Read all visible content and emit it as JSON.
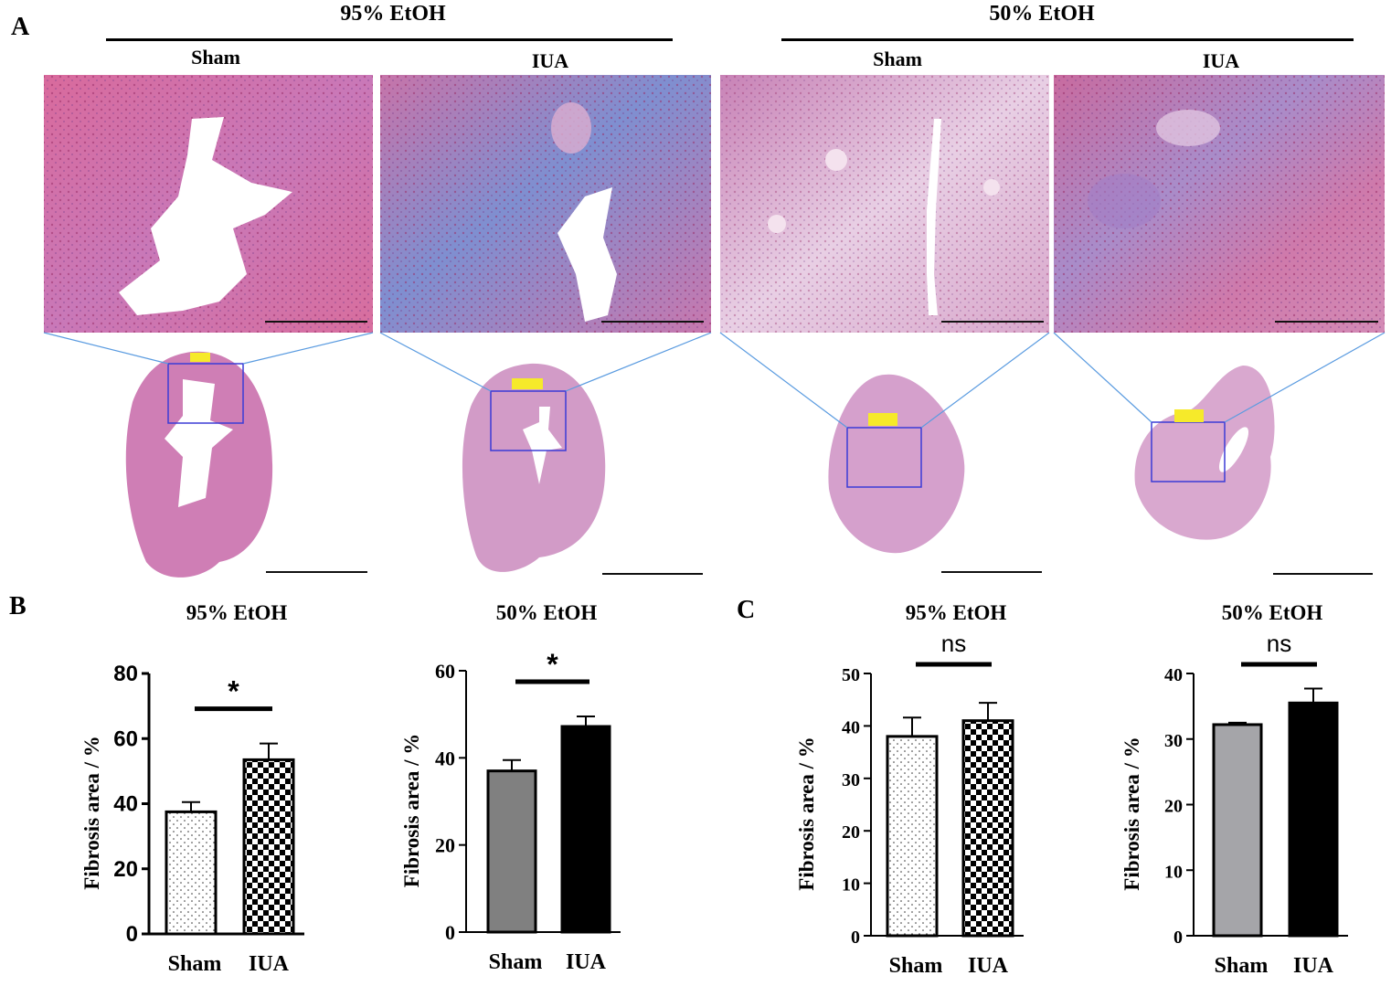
{
  "figure": {
    "panel_a": {
      "letter": "A",
      "groups": [
        {
          "title": "95% EtOH",
          "conditions": [
            "Sham",
            "IUA"
          ]
        },
        {
          "title": "50% EtOH",
          "conditions": [
            "Sham",
            "IUA"
          ]
        }
      ]
    },
    "panel_b": {
      "letter": "B"
    },
    "panel_c": {
      "letter": "C"
    }
  },
  "colors": {
    "stain_pink": "#d77fa6",
    "stain_blue": "#7f9bd0",
    "zoom_box": "#3b3bd6",
    "zoom_line": "#5a9be0",
    "bar_gray": "#808080",
    "bar_lightgray": "#a5a5a9",
    "bar_black": "#000000"
  },
  "chart_data": [
    {
      "type": "bar",
      "panel": "B",
      "title": "95% EtOH",
      "ylabel": "Fibrosis area / %",
      "categories": [
        "Sham",
        "IUA"
      ],
      "values": [
        37.5,
        53.5
      ],
      "errors": [
        3,
        5
      ],
      "fills": [
        "dots",
        "checker"
      ],
      "ylim": [
        0,
        80
      ],
      "yticks": [
        "0",
        "20",
        "40",
        "60",
        "80"
      ],
      "significance": "*"
    },
    {
      "type": "bar",
      "panel": "B",
      "title": "50% EtOH",
      "ylabel": "Fibrosis area / %",
      "categories": [
        "Sham",
        "IUA"
      ],
      "values": [
        37,
        47.2
      ],
      "errors": [
        2.5,
        2.3
      ],
      "fills": [
        "gray",
        "black"
      ],
      "ylim": [
        0,
        60
      ],
      "yticks": [
        "0",
        "20",
        "40",
        "60"
      ],
      "significance": "*"
    },
    {
      "type": "bar",
      "panel": "C",
      "title": "95% EtOH",
      "ylabel": "Fibrosis area / %",
      "categories": [
        "Sham",
        "IUA"
      ],
      "values": [
        38,
        41
      ],
      "errors": [
        3.6,
        3.4
      ],
      "fills": [
        "dots",
        "checker"
      ],
      "ylim": [
        0,
        50
      ],
      "yticks": [
        "0",
        "10",
        "20",
        "30",
        "40",
        "50"
      ],
      "significance": "ns"
    },
    {
      "type": "bar",
      "panel": "C",
      "title": "50% EtOH",
      "ylabel": "Fibrosis area / %",
      "categories": [
        "Sham",
        "IUA"
      ],
      "values": [
        32.2,
        35.5
      ],
      "errors": [
        0.3,
        2.2
      ],
      "fills": [
        "lightgray",
        "black"
      ],
      "ylim": [
        0,
        40
      ],
      "yticks": [
        "0",
        "10",
        "20",
        "30",
        "40"
      ],
      "significance": "ns"
    }
  ]
}
